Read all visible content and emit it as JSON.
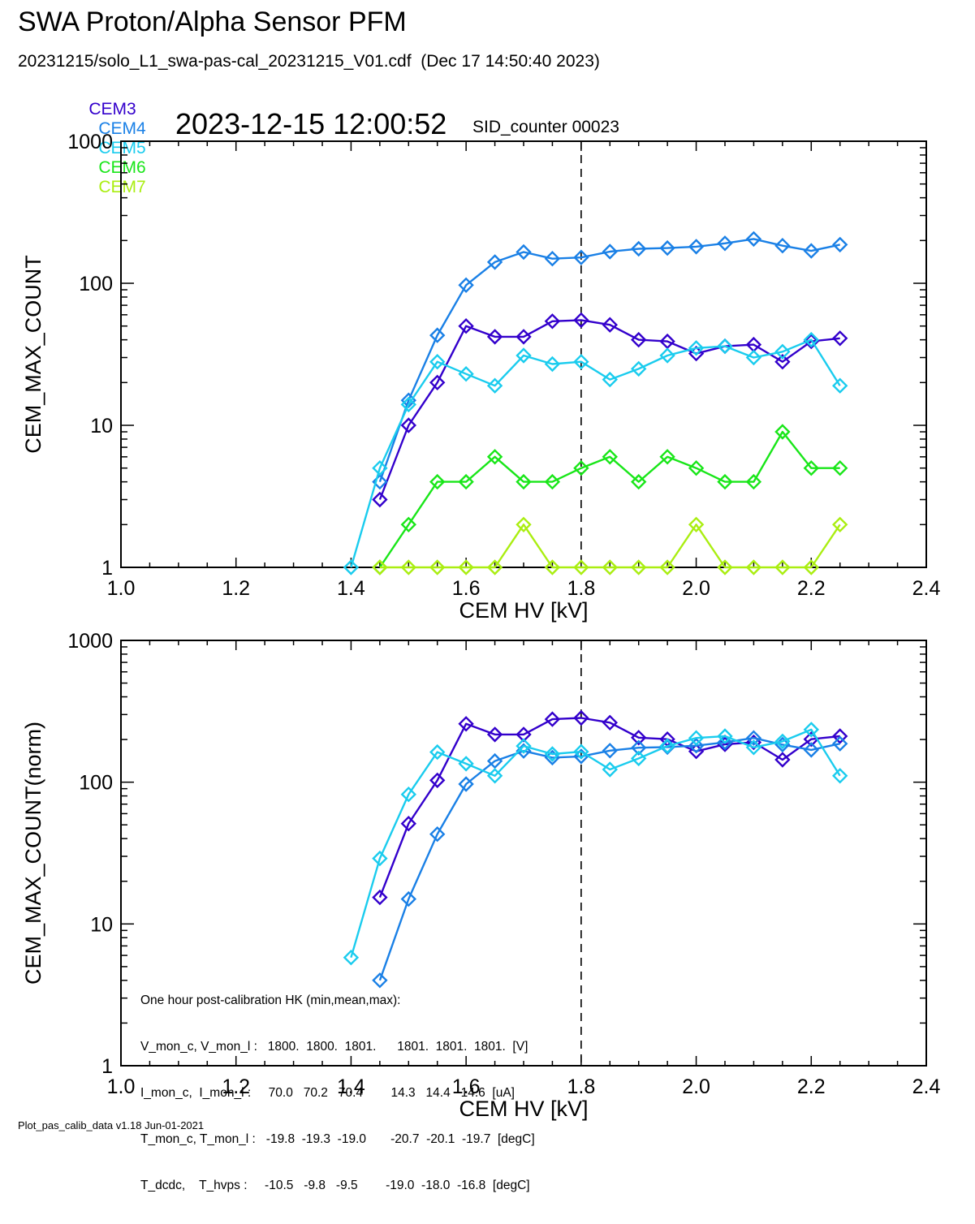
{
  "header": {
    "title": "SWA Proton/Alpha Sensor PFM",
    "file_line": "20231215/solo_L1_swa-pas-cal_20231215_V01.cdf  (Dec 17 14:50:40 2023)",
    "timestamp": "2023-12-15 12:00:52",
    "sid_counter": "SID_counter 00023"
  },
  "legend": [
    {
      "label": "CEM3",
      "color": "#3300cc"
    },
    {
      "label": "CEM4",
      "color": "#1a80e6"
    },
    {
      "label": "CEM5",
      "color": "#1accee"
    },
    {
      "label": "CEM6",
      "color": "#19e619"
    },
    {
      "label": "CEM7",
      "color": "#aaee11"
    }
  ],
  "footer": "Plot_pas_calib_data v1.18 Jun-01-2021",
  "hk_note": {
    "lines": [
      "One hour post-calibration HK (min,mean,max):",
      "V_mon_c, V_mon_l :   1800.  1800.  1801.      1801.  1801.  1801.  [V]",
      "I_mon_c,  I_mon_l :     70.0   70.2   70.4        14.3   14.4   14.6  [uA]",
      "T_mon_c, T_mon_l :   -19.8  -19.3  -19.0       -20.7  -20.1  -19.7  [degC]",
      "T_dcdc,    T_hvps :     -10.5   -9.8   -9.5        -19.0  -18.0  -16.8  [degC]"
    ]
  },
  "chart_data": [
    {
      "type": "line",
      "xlabel": "CEM HV [kV]",
      "ylabel": "CEM_MAX_COUNT",
      "xlim": [
        1.0,
        2.4
      ],
      "ylim": [
        1,
        1000
      ],
      "yscale": "log",
      "xticks": [
        "1.0",
        "1.2",
        "1.4",
        "1.6",
        "1.8",
        "2.0",
        "2.2",
        "2.4"
      ],
      "yticks": [
        "1",
        "10",
        "100",
        "1000"
      ],
      "vline": 1.8,
      "series": [
        {
          "name": "CEM3",
          "color": "#3300cc",
          "x": [
            1.45,
            1.5,
            1.55,
            1.6,
            1.65,
            1.7,
            1.75,
            1.8,
            1.85,
            1.9,
            1.95,
            2.0,
            2.05,
            2.1,
            2.15,
            2.2,
            2.25
          ],
          "values": [
            3,
            10,
            20,
            50,
            42,
            42,
            54,
            55,
            51,
            40,
            39,
            32,
            36,
            37,
            28,
            39,
            41
          ]
        },
        {
          "name": "CEM4",
          "color": "#1a80e6",
          "x": [
            1.45,
            1.5,
            1.55,
            1.6,
            1.65,
            1.7,
            1.75,
            1.8,
            1.85,
            1.9,
            1.95,
            2.0,
            2.05,
            2.1,
            2.15,
            2.2,
            2.25
          ],
          "values": [
            4,
            15,
            43,
            97,
            141,
            166,
            149,
            152,
            167,
            175,
            177,
            181,
            191,
            205,
            184,
            169,
            187
          ]
        },
        {
          "name": "CEM5",
          "color": "#1accee",
          "x": [
            1.4,
            1.45,
            1.5,
            1.55,
            1.6,
            1.65,
            1.7,
            1.75,
            1.8,
            1.85,
            1.9,
            1.95,
            2.0,
            2.05,
            2.1,
            2.15,
            2.2,
            2.25
          ],
          "values": [
            1,
            5,
            14,
            28,
            23,
            19,
            31,
            27,
            28,
            21,
            25,
            31,
            35,
            36,
            30,
            33,
            40,
            19
          ]
        },
        {
          "name": "CEM6",
          "color": "#19e619",
          "x": [
            1.45,
            1.5,
            1.55,
            1.6,
            1.65,
            1.7,
            1.75,
            1.8,
            1.85,
            1.9,
            1.95,
            2.0,
            2.05,
            2.1,
            2.15,
            2.2,
            2.25
          ],
          "values": [
            1,
            2,
            4,
            4,
            6,
            4,
            4,
            5,
            6,
            4,
            6,
            5,
            4,
            4,
            9,
            5,
            5
          ]
        },
        {
          "name": "CEM7",
          "color": "#aaee11",
          "x": [
            1.45,
            1.5,
            1.55,
            1.6,
            1.65,
            1.7,
            1.75,
            1.8,
            1.85,
            1.9,
            1.95,
            2.0,
            2.05,
            2.1,
            2.15,
            2.2,
            2.25
          ],
          "values": [
            1,
            1,
            1,
            1,
            1,
            2,
            1,
            1,
            1,
            1,
            1,
            2,
            1,
            1,
            1,
            1,
            2
          ]
        }
      ]
    },
    {
      "type": "line",
      "xlabel": "CEM HV [kV]",
      "ylabel": "CEM_MAX_COUNT(norm)",
      "xlim": [
        1.0,
        2.4
      ],
      "ylim": [
        1,
        1000
      ],
      "yscale": "log",
      "xticks": [
        "1.0",
        "1.2",
        "1.4",
        "1.6",
        "1.8",
        "2.0",
        "2.2",
        "2.4"
      ],
      "yticks": [
        "1",
        "10",
        "100",
        "1000"
      ],
      "vline": 1.8,
      "series": [
        {
          "name": "CEM3",
          "color": "#3300cc",
          "x": [
            1.45,
            1.5,
            1.55,
            1.6,
            1.65,
            1.7,
            1.75,
            1.8,
            1.85,
            1.9,
            1.95,
            2.0,
            2.05,
            2.1,
            2.15,
            2.2,
            2.25
          ],
          "values": [
            15.4,
            51,
            103,
            258,
            217,
            217,
            278,
            284,
            263,
            206,
            201,
            165,
            185,
            191,
            144,
            201,
            211
          ]
        },
        {
          "name": "CEM4",
          "color": "#1a80e6",
          "x": [
            1.45,
            1.5,
            1.55,
            1.6,
            1.65,
            1.7,
            1.75,
            1.8,
            1.85,
            1.9,
            1.95,
            2.0,
            2.05,
            2.1,
            2.15,
            2.2,
            2.25
          ],
          "values": [
            4,
            15,
            43,
            97,
            141,
            166,
            149,
            152,
            167,
            175,
            177,
            181,
            191,
            205,
            184,
            169,
            187
          ]
        },
        {
          "name": "CEM5",
          "color": "#1accee",
          "x": [
            1.4,
            1.45,
            1.5,
            1.55,
            1.6,
            1.65,
            1.7,
            1.75,
            1.8,
            1.85,
            1.9,
            1.95,
            2.0,
            2.05,
            2.1,
            2.15,
            2.2,
            2.25
          ],
          "values": [
            5.8,
            29,
            82,
            163,
            135,
            111,
            180,
            158,
            164,
            123,
            147,
            180,
            205,
            211,
            176,
            194,
            235,
            111
          ]
        }
      ]
    }
  ]
}
